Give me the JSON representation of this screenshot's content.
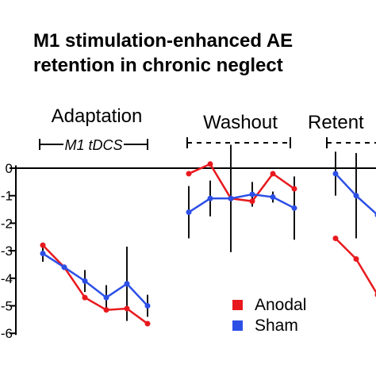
{
  "chart_data": {
    "type": "line",
    "title_lines": [
      "M1 stimulation-enhanced AE",
      "retention in chronic neglect"
    ],
    "phases": [
      {
        "label": "Adaptation",
        "sublabel": "M1 tDCS",
        "bar": "solid"
      },
      {
        "label": "Washout",
        "sublabel": "",
        "bar": "dashed"
      },
      {
        "label": "Retent",
        "sublabel": "",
        "bar": "dashed"
      }
    ],
    "y_ticks": [
      "0",
      "-1",
      "-2",
      "-3",
      "-4",
      "-5",
      "-6"
    ],
    "ylim": [
      -6,
      0
    ],
    "x": [
      1,
      2,
      3,
      4,
      5,
      6,
      8,
      9,
      10,
      11,
      12,
      13,
      15,
      16,
      17
    ],
    "series": [
      {
        "name": "Anodal",
        "color": "#e8191e",
        "segments": [
          {
            "x": [
              1,
              2,
              3,
              4,
              5,
              6
            ],
            "y": [
              -2.8,
              -3.6,
              -4.7,
              -5.15,
              -5.1,
              -5.65
            ]
          },
          {
            "x": [
              8,
              9,
              10,
              11,
              12,
              13
            ],
            "y": [
              -0.2,
              0.15,
              -1.1,
              -1.2,
              -0.2,
              -0.75
            ]
          },
          {
            "x": [
              15,
              16,
              17
            ],
            "y": [
              -2.55,
              -3.3,
              -4.6
            ]
          }
        ]
      },
      {
        "name": "Sham",
        "color": "#2c4fe6",
        "segments": [
          {
            "x": [
              1,
              2,
              3,
              4,
              5,
              6
            ],
            "y": [
              -3.1,
              -3.6,
              -4.1,
              -4.7,
              -4.2,
              -5.0
            ],
            "err": [
              0.3,
              0.1,
              0.4,
              0.45,
              1.35,
              0.4
            ]
          },
          {
            "x": [
              8,
              9,
              10,
              11,
              12,
              13
            ],
            "y": [
              -1.6,
              -1.1,
              -1.1,
              -0.95,
              -1.05,
              -1.45
            ],
            "err": [
              0.95,
              0.65,
              1.95,
              0.45,
              0.2,
              1.15
            ]
          },
          {
            "x": [
              15,
              16,
              17
            ],
            "y": [
              -0.2,
              -1.0,
              -1.7
            ],
            "err": [
              0.8,
              1.55,
              0.3
            ]
          }
        ]
      }
    ],
    "legend": [
      {
        "label": "Anodal",
        "color": "#e8191e"
      },
      {
        "label": "Sham",
        "color": "#2c4fe6"
      }
    ],
    "legend_position": "bottom-right",
    "grid": false
  }
}
